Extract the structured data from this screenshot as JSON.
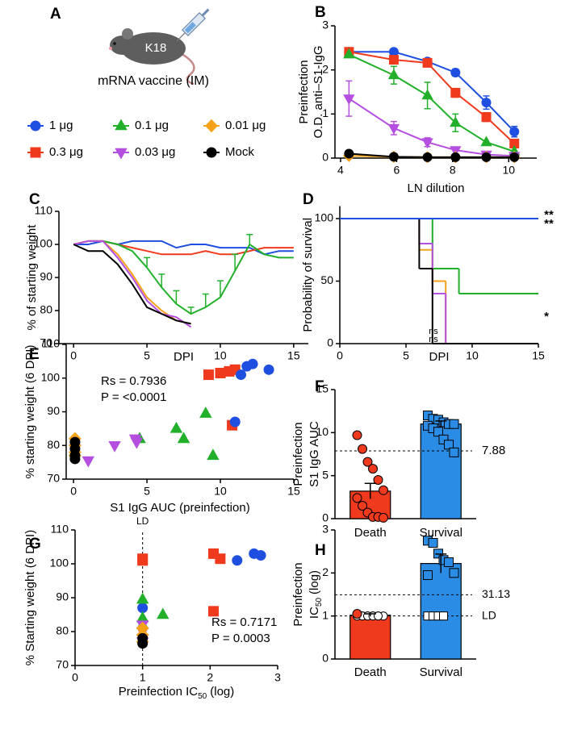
{
  "panel_labels": [
    "A",
    "B",
    "C",
    "D",
    "E",
    "F",
    "G",
    "H"
  ],
  "illustration": {
    "label": "K18",
    "caption": "mRNA vaccine (IM)"
  },
  "chart_data": [
    {
      "type": "line",
      "y_label": [
        "Preinfection",
        "O.D. anti–S1-IgG"
      ],
      "x_label": "LN dilution",
      "x": [
        4.3,
        5.9,
        7.1,
        8.1,
        9.2,
        10.2
      ],
      "xlim": [
        3.8,
        11
      ],
      "xticks": [
        4,
        6,
        8,
        10
      ],
      "ylim": [
        0,
        3
      ],
      "yticks": [
        0,
        1,
        2,
        3
      ],
      "series": [
        {
          "name": "1 μg",
          "color": "#1f4fe0",
          "marker": "circle",
          "values": [
            2.41,
            2.41,
            2.19,
            1.94,
            1.26,
            0.6
          ],
          "errors": [
            null,
            null,
            null,
            0.08,
            0.15,
            0.12
          ]
        },
        {
          "name": "0.3 μg",
          "color": "#f03a1e",
          "marker": "square",
          "values": [
            2.41,
            2.23,
            2.16,
            1.48,
            0.93,
            0.33
          ],
          "errors": [
            null,
            null,
            null,
            0.1,
            0.1,
            null
          ]
        },
        {
          "name": "0.1 μg",
          "color": "#22b02b",
          "marker": "triangle",
          "values": [
            2.35,
            1.88,
            1.42,
            0.8,
            0.36,
            0.15
          ],
          "errors": [
            null,
            0.2,
            0.3,
            0.2,
            null,
            null
          ]
        },
        {
          "name": "0.03 μg",
          "color": "#b44fe0",
          "marker": "triangle-down",
          "values": [
            1.35,
            0.68,
            0.36,
            0.18,
            0.08,
            0.05
          ],
          "errors": [
            0.4,
            0.15,
            0.1,
            null,
            null,
            null
          ]
        },
        {
          "name": "0.01 μg",
          "color": "#f5a21a",
          "marker": "diamond",
          "values": [
            0.05,
            0.03,
            0.02,
            0.02,
            0.02,
            0.02
          ]
        },
        {
          "name": "Mock",
          "color": "#000000",
          "marker": "circle",
          "values": [
            0.1,
            0.03,
            0.02,
            0.02,
            0.02,
            0.02
          ]
        }
      ]
    },
    {
      "type": "line",
      "y_label": "% of starting weight",
      "x_label": "DPI",
      "error_bars": "up",
      "x": [
        0,
        1,
        2,
        3,
        4,
        5,
        6,
        7,
        8,
        9,
        10,
        11,
        12,
        13,
        14,
        15
      ],
      "xlim": [
        -1,
        16
      ],
      "xticks": [
        0,
        5,
        10,
        15
      ],
      "ylim": [
        70,
        110
      ],
      "yticks": [
        70,
        80,
        90,
        100,
        110
      ],
      "series": [
        {
          "color": "#1f4fe0",
          "values": [
            100,
            100,
            101,
            100,
            101,
            101,
            101,
            99,
            100,
            100,
            99,
            99,
            99,
            97,
            98,
            98
          ]
        },
        {
          "color": "#f03a1e",
          "values": [
            100,
            101,
            101,
            100,
            99,
            98,
            97,
            97,
            97,
            98,
            97,
            97,
            98,
            99,
            99,
            99
          ]
        },
        {
          "color": "#22b02b",
          "values": [
            100,
            101,
            101,
            100,
            98,
            93,
            87,
            82,
            79,
            81,
            84,
            92,
            100,
            97,
            96,
            96
          ],
          "errors": [
            null,
            null,
            null,
            null,
            null,
            3,
            4,
            4,
            2,
            4,
            5,
            5,
            3,
            null,
            null,
            null
          ]
        },
        {
          "color": "#f5a21a",
          "values": [
            100,
            101,
            101,
            97,
            91,
            84,
            80,
            77,
            76,
            null,
            null,
            null,
            null,
            null,
            null,
            null
          ]
        },
        {
          "color": "#b44fe0",
          "values": [
            100,
            101,
            101,
            96,
            90,
            83,
            79,
            78,
            75,
            null,
            null,
            null,
            null,
            null,
            null,
            null
          ]
        },
        {
          "color": "#000000",
          "values": [
            100,
            98,
            98,
            94,
            88,
            81,
            79,
            77,
            76,
            null,
            null,
            null,
            null,
            null,
            null,
            null
          ]
        }
      ]
    },
    {
      "type": "step",
      "y_label": "Probability of survival",
      "x_label": "DPI",
      "xlim": [
        0,
        15
      ],
      "xticks": [
        0,
        5,
        10,
        15
      ],
      "ylim": [
        0,
        110
      ],
      "yticks": [
        0,
        50,
        100
      ],
      "annotations": [
        "**",
        "**",
        "*",
        "ns",
        "ns"
      ],
      "series": [
        {
          "color": "#f03a1e",
          "x": [
            0
          ],
          "values": [
            100
          ]
        },
        {
          "color": "#22b02b",
          "x": [
            0,
            7,
            9
          ],
          "values": [
            100,
            60,
            40
          ]
        },
        {
          "color": "#f5a21a",
          "x": [
            0,
            6,
            7,
            8
          ],
          "values": [
            100,
            75,
            50,
            0
          ]
        },
        {
          "color": "#b44fe0",
          "x": [
            0,
            6,
            7,
            8
          ],
          "values": [
            100,
            80,
            40,
            0
          ]
        },
        {
          "color": "#000000",
          "x": [
            0,
            6,
            7
          ],
          "values": [
            100,
            60,
            0
          ]
        },
        {
          "color": "#1f4fe0",
          "x": [
            0
          ],
          "values": [
            100
          ]
        }
      ]
    },
    {
      "type": "scatter",
      "y_label": "% starting weight (6 DPI)",
      "x_label": "S1 IgG AUC (preinfection)",
      "xlim": [
        -0.5,
        15
      ],
      "xticks": [
        0,
        5,
        10,
        15
      ],
      "ylim": [
        70,
        110
      ],
      "yticks": [
        70,
        80,
        90,
        100,
        110
      ],
      "stats": [
        "Rs = 0.7936",
        "P = <0.0001"
      ],
      "series": [
        {
          "color": "#f03a1e",
          "marker": "square",
          "x": [
            9.2,
            10,
            10.6,
            11,
            10.8
          ],
          "values": [
            101,
            101.5,
            102,
            102.5,
            86
          ]
        },
        {
          "color": "#1f4fe0",
          "marker": "circle",
          "x": [
            11.4,
            11.8,
            12.2,
            13.3,
            11
          ],
          "values": [
            101,
            103.5,
            104.2,
            102.5,
            87
          ]
        },
        {
          "color": "#22b02b",
          "marker": "triangle",
          "x": [
            4.5,
            7,
            7.5,
            9,
            9.5
          ],
          "values": [
            82,
            85,
            82,
            89.5,
            77
          ]
        },
        {
          "color": "#b44fe0",
          "marker": "triangle-down",
          "x": [
            1,
            2.8,
            4.2,
            4.3,
            0.1
          ],
          "values": [
            75.5,
            80,
            82,
            81,
            79
          ]
        },
        {
          "color": "#f5a21a",
          "marker": "diamond",
          "x": [
            0.1,
            0.1,
            0.1,
            0.1
          ],
          "values": [
            82,
            80,
            78,
            77
          ]
        },
        {
          "color": "#000000",
          "marker": "circle",
          "x": [
            0.1,
            0.1,
            0.1,
            0.1
          ],
          "values": [
            81,
            79,
            77,
            76
          ]
        }
      ]
    },
    {
      "type": "bar",
      "y_label": [
        "Preinfection",
        "S1 IgG AUC"
      ],
      "categories": [
        "Death",
        "Survival"
      ],
      "values": [
        3.2,
        11
      ],
      "errors": [
        0.9,
        0.35
      ],
      "colors": [
        "#f03a1e",
        "#2b8ce6"
      ],
      "markers": [
        "circle",
        "square"
      ],
      "points": [
        [
          9.7,
          8.1,
          6.6,
          5.8,
          4.5,
          3.3,
          2.4,
          1.5,
          0.7,
          0.2,
          0.2,
          0.1
        ],
        [
          12,
          11.6,
          11.5,
          11.2,
          11,
          11,
          10.8,
          10.5,
          10.1,
          9.2,
          8.6,
          7.7
        ]
      ],
      "reference_lines": [
        {
          "value": 7.88
        }
      ],
      "ylim": [
        0,
        15
      ],
      "yticks": [
        0,
        5,
        10,
        15
      ]
    },
    {
      "type": "scatter",
      "y_label": "% Starting weight (6 DPI)",
      "x_label": [
        "Preinfection IC",
        "50",
        "(log)"
      ],
      "xlim": [
        0,
        3
      ],
      "xticks": [
        0,
        1,
        2,
        3
      ],
      "ylim": [
        70,
        110
      ],
      "yticks": [
        70,
        80,
        90,
        100,
        110
      ],
      "stats": [
        "Rs = 0.7171",
        "P = 0.0003"
      ],
      "reference_lines_x": [
        {
          "value": 1,
          "label": "LD"
        }
      ],
      "series": [
        {
          "color": "#f03a1e",
          "marker": "square",
          "x": [
            1,
            1,
            2.05,
            2.15,
            2.05
          ],
          "values": [
            101.5,
            101,
            103,
            101.5,
            86
          ]
        },
        {
          "color": "#1f4fe0",
          "marker": "circle",
          "x": [
            2.4,
            2.65,
            2.75,
            1
          ],
          "values": [
            101,
            103,
            102.5,
            87
          ]
        },
        {
          "color": "#22b02b",
          "marker": "triangle",
          "x": [
            1,
            1.3,
            1,
            1
          ],
          "values": [
            89.5,
            85,
            84,
            82
          ]
        },
        {
          "color": "#b44fe0",
          "marker": "triangle-down",
          "x": [
            1,
            1,
            1,
            1
          ],
          "values": [
            82,
            80,
            78,
            77
          ]
        },
        {
          "color": "#f5a21a",
          "marker": "diamond",
          "x": [
            1,
            1,
            1
          ],
          "values": [
            81,
            79,
            77
          ]
        },
        {
          "color": "#000000",
          "marker": "circle",
          "x": [
            1,
            1
          ],
          "values": [
            76.5,
            78
          ]
        }
      ]
    },
    {
      "type": "bar",
      "y_label": [
        "Preinfection",
        [
          "IC",
          "50",
          "(log)"
        ]
      ],
      "categories": [
        "Death",
        "Survival"
      ],
      "values": [
        1.02,
        2.22
      ],
      "errors": [
        0.03,
        0.22
      ],
      "colors": [
        "#f03a1e",
        "#2b8ce6"
      ],
      "markers": [
        "circle",
        "square"
      ],
      "points": [
        [
          1.05
        ],
        [
          2.75,
          2.7,
          2.45,
          2.3,
          2.25,
          2.0,
          1.95
        ]
      ],
      "open_points": [
        [
          1,
          1,
          1,
          1,
          1,
          1,
          1,
          1,
          1,
          1,
          1
        ],
        [
          1,
          1,
          1,
          1
        ]
      ],
      "reference_lines": [
        {
          "value": 1.493,
          "label": "31.13"
        },
        {
          "value": 1,
          "label": "LD"
        }
      ],
      "ylim": [
        0,
        3
      ],
      "yticks": [
        0,
        1,
        2,
        3
      ]
    }
  ]
}
